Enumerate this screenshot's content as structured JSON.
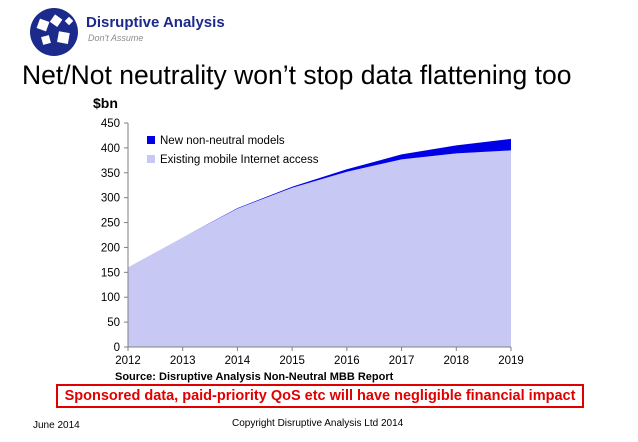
{
  "brand": {
    "name": "Disruptive Analysis",
    "tagline": "Don't Assume"
  },
  "title": "Net/Not neutrality won’t stop data flattening too",
  "colors": {
    "series_new": "#0000e6",
    "series_existing": "#c8c8f4",
    "callout": "#e00000",
    "brand": "#1c2a8c"
  },
  "chart_data": {
    "type": "area",
    "stacked": true,
    "title": "",
    "ylabel": "$bn",
    "xlabel": "",
    "x": [
      2012,
      2013,
      2014,
      2015,
      2016,
      2017,
      2018,
      2019
    ],
    "ylim": [
      0,
      450
    ],
    "yticks": [
      0,
      50,
      100,
      150,
      200,
      250,
      300,
      350,
      400,
      450
    ],
    "series": [
      {
        "name": "Existing mobile Internet access",
        "values": [
          160,
          220,
          278,
          320,
          352,
          377,
          389,
          395
        ]
      },
      {
        "name": "New non-neutral models",
        "values": [
          0,
          0,
          1,
          2,
          5,
          10,
          16,
          23
        ]
      }
    ],
    "legend": "top-left",
    "grid": false
  },
  "source": "Source: Disruptive Analysis Non-Neutral MBB Report",
  "callout": "Sponsored data, paid-priority QoS etc will have negligible financial impact",
  "footer": {
    "date": "June 2014",
    "copyright": "Copyright Disruptive Analysis Ltd 2014"
  }
}
